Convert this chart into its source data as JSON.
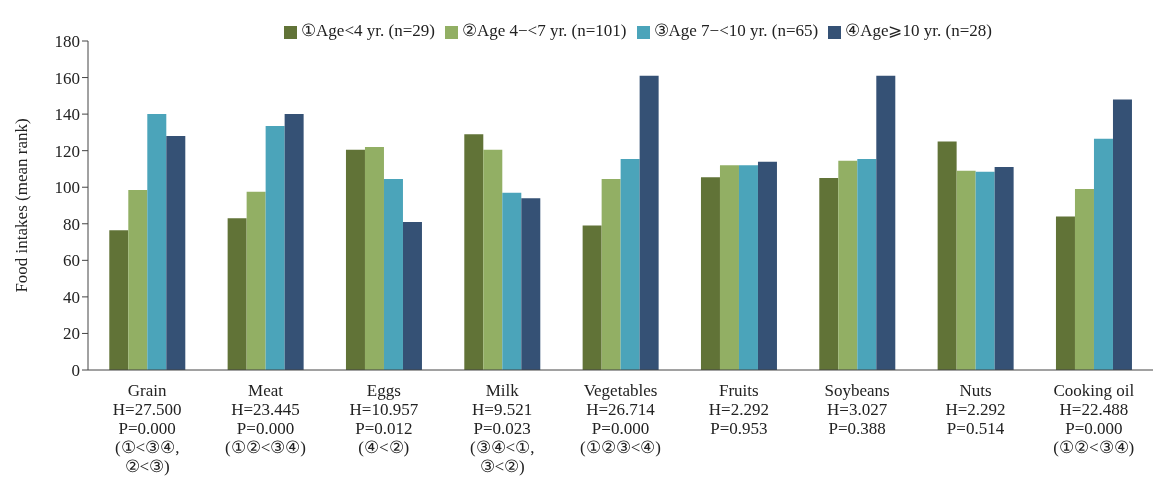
{
  "chart_data": {
    "type": "bar",
    "ylabel": "Food intakes (mean rank)",
    "categories": [
      "Grain\nH=27.500\nP=0.000\n(①<③④,\n②<③)",
      "Meat\nH=23.445\nP=0.000\n(①②<③④)",
      "Eggs\nH=10.957\nP=0.012\n(④<②)",
      "Milk\nH=9.521\nP=0.023\n(③④<①,\n③<②)",
      "Vegetables\nH=26.714\nP=0.000\n(①②③<④)",
      "Fruits\nH=2.292\nP=0.953",
      "Soybeans\nH=3.027\nP=0.388",
      "Nuts\nH=2.292\nP=0.514",
      "Cooking oil\nH=22.488\nP=0.000\n(①②<③④)"
    ],
    "series": [
      {
        "name": "①Age<4 yr. (n=29)",
        "color": "#617337",
        "values": [
          76.5,
          83,
          120.5,
          129,
          79,
          105.5,
          105,
          125,
          84
        ]
      },
      {
        "name": "②Age 4−<7 yr. (n=101)",
        "color": "#92af64",
        "values": [
          98.5,
          97.5,
          122,
          120.5,
          104.5,
          112,
          114.5,
          109,
          99
        ]
      },
      {
        "name": "③Age 7−<10 yr. (n=65)",
        "color": "#4ba4ba",
        "values": [
          140,
          133.5,
          104.5,
          97,
          115.5,
          112,
          115.5,
          108.5,
          126.5
        ]
      },
      {
        "name": "④Age⩾10 yr. (n=28)",
        "color": "#355175",
        "values": [
          128,
          140,
          81,
          94,
          161,
          114,
          161,
          111,
          148
        ]
      }
    ],
    "ylim": [
      0,
      180
    ],
    "yticks": [
      0,
      20,
      40,
      60,
      80,
      100,
      120,
      140,
      160,
      180
    ],
    "grid": false,
    "legend": "top"
  }
}
